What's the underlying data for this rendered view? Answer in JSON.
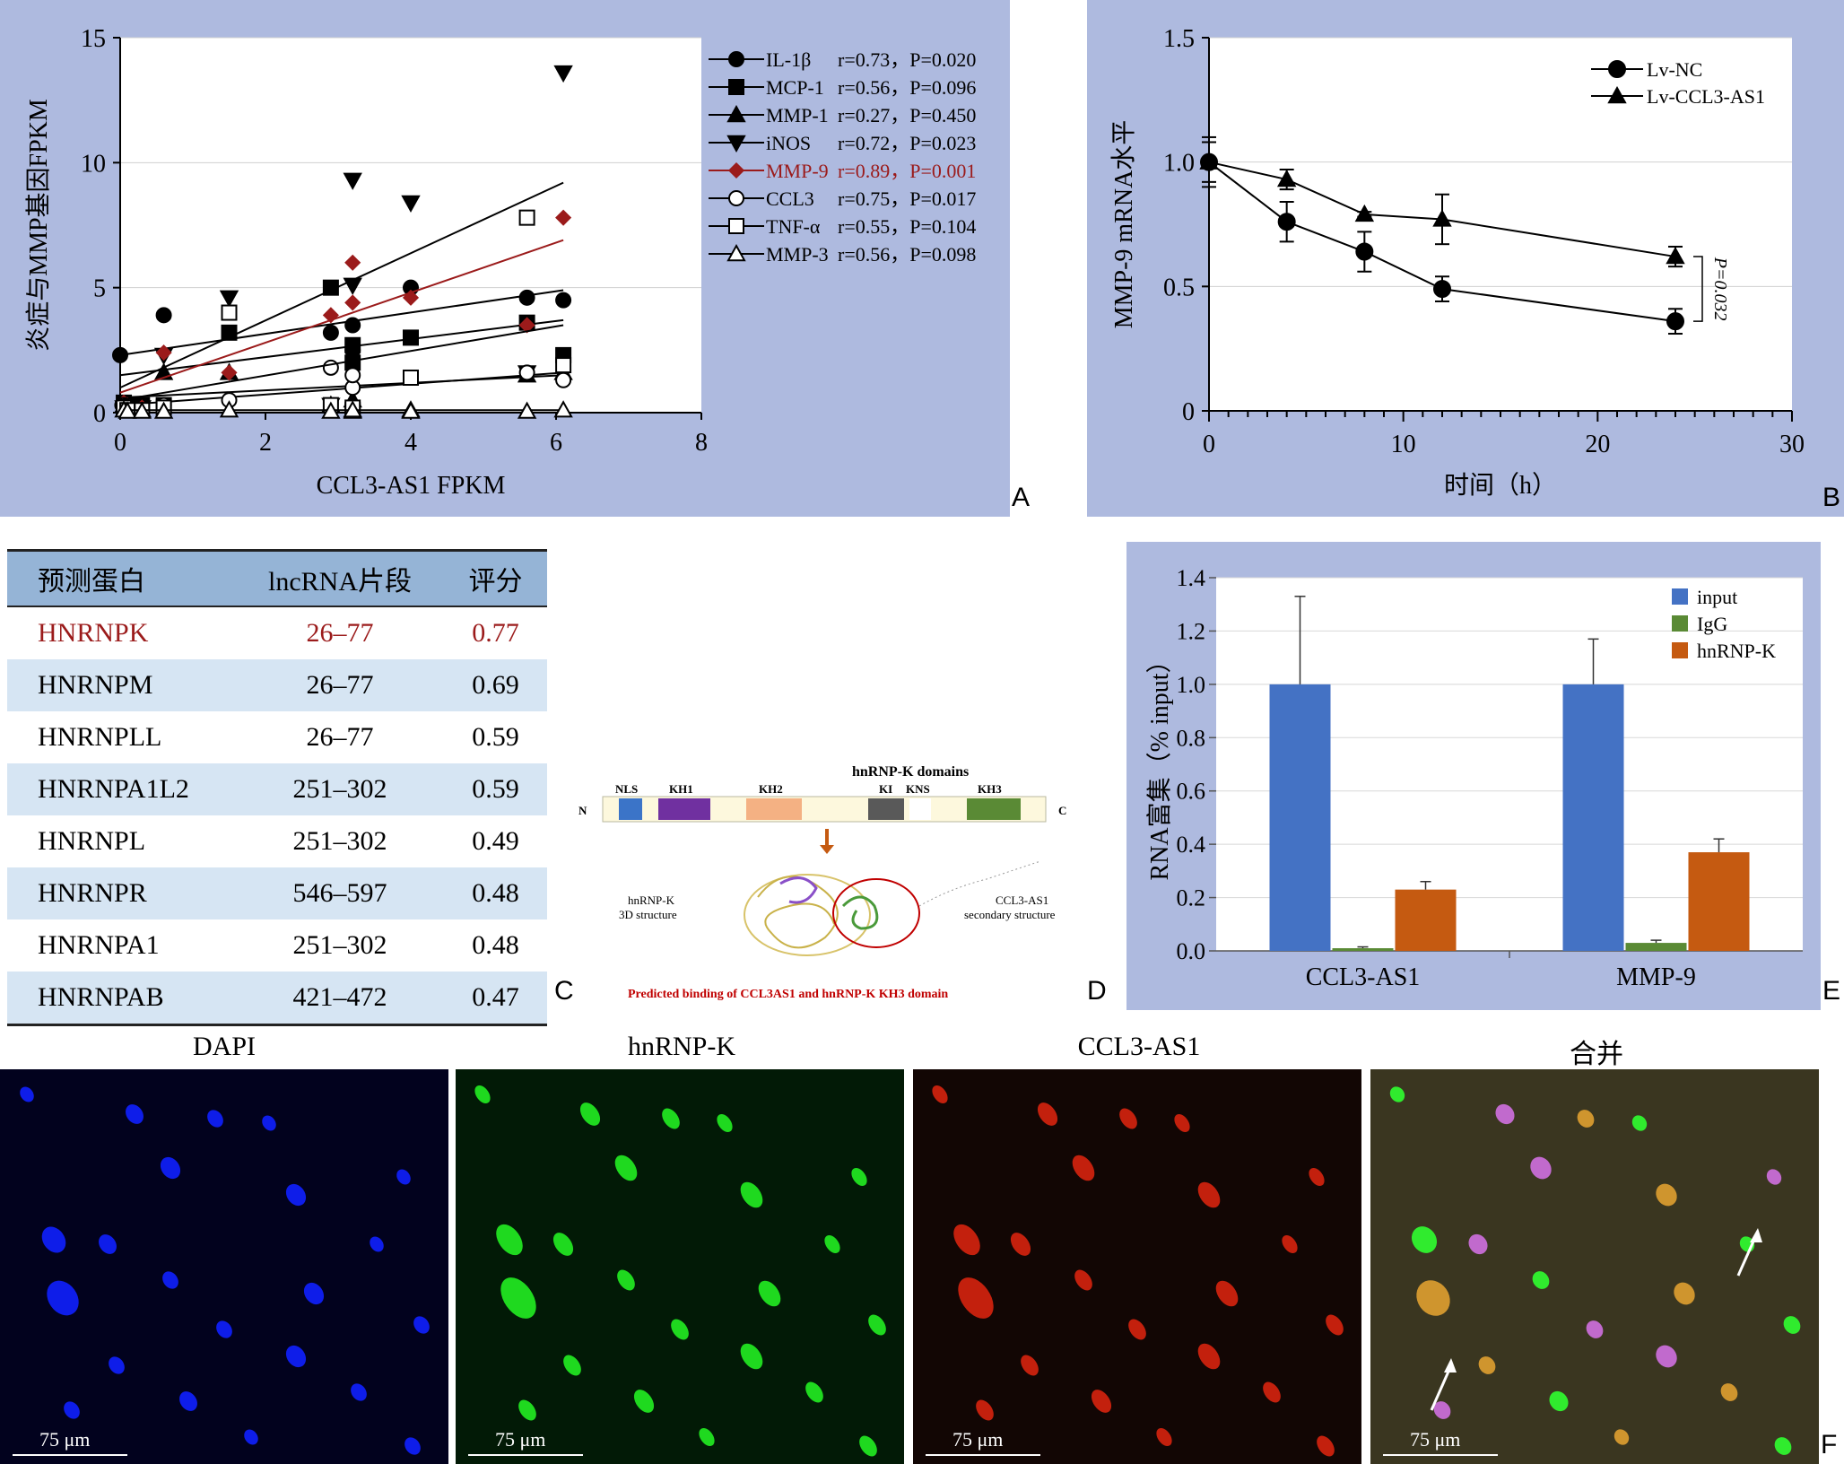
{
  "panel_letters": {
    "a": "A",
    "b": "B",
    "c": "C",
    "d": "D",
    "e": "E",
    "f": "F"
  },
  "chart_data": [
    {
      "panel": "A",
      "type": "scatter",
      "xlabel": "CCL3-AS1 FPKM",
      "ylabel": "炎症与MMP基因FPKM",
      "xlim": [
        0,
        8
      ],
      "ylim": [
        0,
        15
      ],
      "xticks": [
        0,
        2,
        4,
        6,
        8
      ],
      "yticks": [
        0,
        5,
        10,
        15
      ],
      "legend_position": "right",
      "series": [
        {
          "name": "IL-1β",
          "stat": "r=0.73，P=0.020",
          "marker": "circle",
          "color": "#000000",
          "x": [
            0,
            0.03,
            0.13,
            0.3,
            0.6,
            2.9,
            3.2,
            3.2,
            4.0,
            5.6,
            6.1
          ],
          "y": [
            2.3,
            0.3,
            0.2,
            0.25,
            3.9,
            3.2,
            3.5,
            2.5,
            5.0,
            4.6,
            4.5
          ],
          "fit": [
            [
              0,
              2.3
            ],
            [
              6.1,
              4.9
            ]
          ]
        },
        {
          "name": "MCP-1",
          "stat": "r=0.56，P=0.096",
          "marker": "square",
          "color": "#000000",
          "x": [
            0.05,
            0.1,
            0.3,
            0.6,
            1.5,
            2.9,
            3.2,
            3.2,
            4.0,
            5.6,
            6.1
          ],
          "y": [
            0.4,
            0.15,
            0.3,
            0.3,
            3.2,
            5.0,
            2.7,
            2.0,
            3.0,
            3.6,
            2.3
          ],
          "fit": [
            [
              0,
              1.5
            ],
            [
              6.1,
              3.7
            ]
          ]
        },
        {
          "name": "MMP-1",
          "stat": "r=0.27，P=0.450",
          "marker": "triangle-up",
          "color": "#000000",
          "x": [
            0.05,
            0.1,
            0.3,
            0.6,
            1.5,
            2.9,
            3.2,
            3.2,
            4.0,
            5.6,
            6.1
          ],
          "y": [
            0.3,
            0.2,
            0.1,
            1.6,
            1.6,
            0.3,
            0.1,
            0.5,
            0.1,
            1.5,
            1.6
          ],
          "fit": [
            [
              0,
              0.6
            ],
            [
              6.1,
              1.5
            ]
          ]
        },
        {
          "name": "iNOS",
          "stat": "r=0.72，P=0.023",
          "marker": "triangle-down",
          "color": "#000000",
          "x": [
            0.05,
            0.1,
            0.3,
            0.6,
            1.5,
            2.9,
            3.2,
            3.2,
            4.0,
            5.6,
            6.1
          ],
          "y": [
            0.2,
            0.3,
            0.2,
            2.3,
            4.6,
            0.3,
            9.3,
            5.1,
            8.4,
            1.6,
            13.6
          ],
          "fit": [
            [
              0,
              1.0
            ],
            [
              6.1,
              9.2
            ]
          ]
        },
        {
          "name": "MMP-9",
          "stat": "r=0.89，P=0.001",
          "marker": "diamond",
          "color": "#9b1b1b",
          "x": [
            0.05,
            0.1,
            0.3,
            0.6,
            1.5,
            2.9,
            3.2,
            3.2,
            4.0,
            5.6,
            6.1
          ],
          "y": [
            0.4,
            0.3,
            0.2,
            2.4,
            1.6,
            3.9,
            6.0,
            4.4,
            4.6,
            3.5,
            7.8
          ],
          "fit": [
            [
              0,
              0.8
            ],
            [
              6.1,
              6.9
            ]
          ]
        },
        {
          "name": "CCL3",
          "stat": "r=0.75，P=0.017",
          "marker": "circle-open",
          "color": "#000000",
          "x": [
            0.05,
            0.1,
            0.3,
            0.6,
            1.5,
            2.9,
            3.2,
            3.2,
            4.0,
            5.6,
            6.1
          ],
          "y": [
            0.3,
            0.2,
            0.1,
            0.3,
            0.5,
            1.8,
            1.0,
            1.5,
            1.4,
            1.6,
            1.3
          ],
          "fit": [
            [
              0,
              0.3
            ],
            [
              6.1,
              1.6
            ]
          ]
        },
        {
          "name": "TNF-α",
          "stat": "r=0.55，P=0.104",
          "marker": "square-open",
          "color": "#000000",
          "x": [
            0.05,
            0.1,
            0.3,
            0.6,
            1.5,
            2.9,
            3.2,
            3.2,
            4.0,
            5.6,
            6.1
          ],
          "y": [
            0.2,
            0.1,
            0.1,
            0.2,
            4.0,
            0.3,
            0.1,
            0.2,
            1.4,
            7.8,
            1.9
          ],
          "fit": [
            [
              0,
              0.5
            ],
            [
              6.1,
              3.5
            ]
          ]
        },
        {
          "name": "MMP-3",
          "stat": "r=0.56，P=0.098",
          "marker": "triangle-open",
          "color": "#000000",
          "x": [
            0.05,
            0.1,
            0.3,
            0.6,
            1.5,
            2.9,
            3.2,
            3.2,
            4.0,
            5.6,
            6.1
          ],
          "y": [
            0.1,
            0.05,
            0.05,
            0.05,
            0.1,
            0.05,
            0.05,
            0.1,
            0.05,
            0.05,
            0.1
          ],
          "fit": [
            [
              0,
              0.1
            ],
            [
              6.1,
              0.1
            ]
          ]
        }
      ]
    },
    {
      "panel": "B",
      "type": "line",
      "xlabel": "时间（h）",
      "ylabel": "MMP-9 mRNA水平",
      "xlim": [
        0,
        30
      ],
      "ylim": [
        0,
        1.5
      ],
      "xticks": [
        0,
        10,
        20,
        30
      ],
      "yticks": [
        0,
        0.5,
        1.0,
        1.5
      ],
      "annotation": "P=0.032",
      "legend_position": "top-right",
      "series": [
        {
          "name": "Lv-NC",
          "marker": "circle",
          "x": [
            0,
            4,
            8,
            12,
            24
          ],
          "y": [
            1.0,
            0.76,
            0.64,
            0.49,
            0.36
          ],
          "err": [
            0.1,
            0.08,
            0.08,
            0.05,
            0.05
          ]
        },
        {
          "name": "Lv-CCL3-AS1",
          "marker": "triangle-up",
          "x": [
            0,
            4,
            8,
            12,
            24
          ],
          "y": [
            1.0,
            0.93,
            0.79,
            0.77,
            0.62
          ],
          "err": [
            0.08,
            0.04,
            0.01,
            0.1,
            0.04
          ]
        }
      ]
    },
    {
      "panel": "E",
      "type": "bar",
      "ylabel": "RNA富集（% input）",
      "ylim": [
        0,
        1.4
      ],
      "yticks": [
        0.0,
        0.2,
        0.4,
        0.6,
        0.8,
        1.0,
        1.2,
        1.4
      ],
      "categories": [
        "CCL3-AS1",
        "MMP-9"
      ],
      "legend_position": "top-right",
      "series": [
        {
          "name": "input",
          "color": "#4472c4",
          "values": [
            1.0,
            1.0
          ],
          "err": [
            0.33,
            0.17
          ]
        },
        {
          "name": "IgG",
          "color": "#5a8a35",
          "values": [
            0.01,
            0.03
          ],
          "err": [
            0.005,
            0.01
          ]
        },
        {
          "name": "hnRNP-K",
          "color": "#c55a11",
          "values": [
            0.23,
            0.37
          ],
          "err": [
            0.03,
            0.05
          ]
        }
      ]
    }
  ],
  "table": {
    "headers": [
      "预测蛋白",
      "lncRNA片段",
      "评分"
    ],
    "rows": [
      [
        "HNRNPK",
        "26–77",
        "0.77"
      ],
      [
        "HNRNPM",
        "26–77",
        "0.69"
      ],
      [
        "HNRNPLL",
        "26–77",
        "0.59"
      ],
      [
        "HNRNPA1L2",
        "251–302",
        "0.59"
      ],
      [
        "HNRNPL",
        "251–302",
        "0.49"
      ],
      [
        "HNRNPR",
        "546–597",
        "0.48"
      ],
      [
        "HNRNPA1",
        "251–302",
        "0.48"
      ],
      [
        "HNRNPAB",
        "421–472",
        "0.47"
      ]
    ]
  },
  "domain_diagram": {
    "title": "hnRNP-K domains",
    "n_label": "N",
    "c_label": "C",
    "domains": [
      {
        "name": "NLS",
        "color": "#3b74c8"
      },
      {
        "name": "KH1",
        "color": "#7030a0"
      },
      {
        "name": "KH2",
        "color": "#f4b183"
      },
      {
        "name": "KI",
        "color": "#595959"
      },
      {
        "name": "KNS",
        "color": "#ffffff"
      },
      {
        "name": "KH3",
        "color": "#5a8a35"
      }
    ],
    "structure_label_1": "hnRNP-K",
    "structure_label_2": "3D structure",
    "rna_label_1": "CCL3-AS1",
    "rna_label_2": "secondary structure",
    "caption": "Predicted binding of CCL3AS1 and hnRNP-K KH3 domain"
  },
  "microscopy": {
    "panels": [
      {
        "title": "DAPI",
        "scale": "75 μm",
        "color": "#1020ff"
      },
      {
        "title": "hnRNP-K",
        "scale": "75 μm",
        "color": "#22ee22"
      },
      {
        "title": "CCL3-AS1",
        "scale": "75 μm",
        "color": "#ff2a10"
      },
      {
        "title": "合并",
        "scale": "75 μm",
        "color": "#ffffff"
      }
    ]
  }
}
